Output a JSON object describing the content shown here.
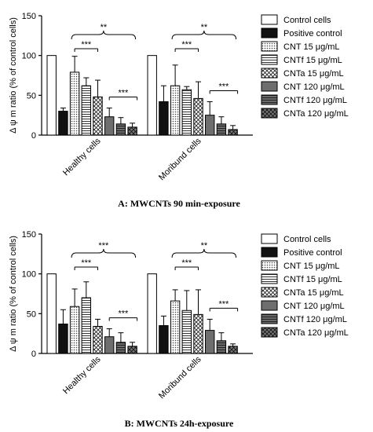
{
  "legend_entries": [
    {
      "name": "Control cells",
      "pattern": "white"
    },
    {
      "name": "Positive control",
      "pattern": "black"
    },
    {
      "name": "CNT 15 μg/mL",
      "pattern": "dots"
    },
    {
      "name": "CNTf 15 μg/mL",
      "pattern": "hlines"
    },
    {
      "name": "CNTa 15 μg/mL",
      "pattern": "cross"
    },
    {
      "name": "CNT 120 μg/mL",
      "pattern": "darkgray"
    },
    {
      "name": "CNTf 120 μg/mL",
      "pattern": "darklines"
    },
    {
      "name": "CNTa 120 μg/mL",
      "pattern": "darkcross"
    }
  ],
  "chart_data": [
    {
      "type": "bar",
      "caption": "A: MWCNTs 90 min-exposure",
      "ylabel": "Δ ψ m ratio (% of control cells)",
      "ylim": [
        0,
        150
      ],
      "yticks": [
        0,
        50,
        100,
        150
      ],
      "categories": [
        "Healthy cells",
        "Moribund cells"
      ],
      "series": [
        {
          "name": "Control cells",
          "values": [
            100,
            100
          ],
          "errors": [
            0,
            0
          ]
        },
        {
          "name": "Positive control",
          "values": [
            30,
            42
          ],
          "errors": [
            4,
            20
          ]
        },
        {
          "name": "CNT 15 μg/mL",
          "values": [
            79,
            62
          ],
          "errors": [
            20,
            26
          ]
        },
        {
          "name": "CNTf 15 μg/mL",
          "values": [
            62,
            57
          ],
          "errors": [
            10,
            4
          ]
        },
        {
          "name": "CNTa 15 μg/mL",
          "values": [
            48,
            46
          ],
          "errors": [
            21,
            21
          ]
        },
        {
          "name": "CNT 120 μg/mL",
          "values": [
            23,
            25
          ],
          "errors": [
            11,
            17
          ]
        },
        {
          "name": "CNTf 120 μg/mL",
          "values": [
            14,
            14
          ],
          "errors": [
            8,
            9
          ]
        },
        {
          "name": "CNTa 120 μg/mL",
          "values": [
            10,
            7
          ],
          "errors": [
            5,
            5
          ]
        }
      ],
      "annotations": [
        {
          "text": "**",
          "category": 0,
          "type": "group"
        },
        {
          "text": "***",
          "category": 0,
          "type": "low"
        },
        {
          "text": "***",
          "category": 0,
          "type": "high"
        },
        {
          "text": "**",
          "category": 1,
          "type": "group"
        },
        {
          "text": "***",
          "category": 1,
          "type": "low"
        },
        {
          "text": "***",
          "category": 1,
          "type": "high"
        }
      ]
    },
    {
      "type": "bar",
      "caption": "B: MWCNTs 24h-exposure",
      "ylabel": "Δ ψ m ratio (% of control cells)",
      "ylim": [
        0,
        150
      ],
      "yticks": [
        0,
        50,
        100,
        150
      ],
      "categories": [
        "Healthy cells",
        "Moribund cells"
      ],
      "series": [
        {
          "name": "Control cells",
          "values": [
            100,
            100
          ],
          "errors": [
            0,
            0
          ]
        },
        {
          "name": "Positive control",
          "values": [
            37,
            35
          ],
          "errors": [
            18,
            12
          ]
        },
        {
          "name": "CNT 15 μg/mL",
          "values": [
            59,
            66
          ],
          "errors": [
            22,
            14
          ]
        },
        {
          "name": "CNTf 15 μg/mL",
          "values": [
            70,
            54
          ],
          "errors": [
            20,
            25
          ]
        },
        {
          "name": "CNTa 15 μg/mL",
          "values": [
            34,
            49
          ],
          "errors": [
            9,
            31
          ]
        },
        {
          "name": "CNT 120 μg/mL",
          "values": [
            21,
            29
          ],
          "errors": [
            10,
            14
          ]
        },
        {
          "name": "CNTf 120 μg/mL",
          "values": [
            14,
            16
          ],
          "errors": [
            12,
            10
          ]
        },
        {
          "name": "CNTa 120 μg/mL",
          "values": [
            9,
            9
          ],
          "errors": [
            5,
            3
          ]
        }
      ],
      "annotations": [
        {
          "text": "***",
          "category": 0,
          "type": "group"
        },
        {
          "text": "***",
          "category": 0,
          "type": "low"
        },
        {
          "text": "***",
          "category": 0,
          "type": "high"
        },
        {
          "text": "**",
          "category": 1,
          "type": "group"
        },
        {
          "text": "***",
          "category": 1,
          "type": "low"
        },
        {
          "text": "***",
          "category": 1,
          "type": "high"
        }
      ]
    }
  ]
}
